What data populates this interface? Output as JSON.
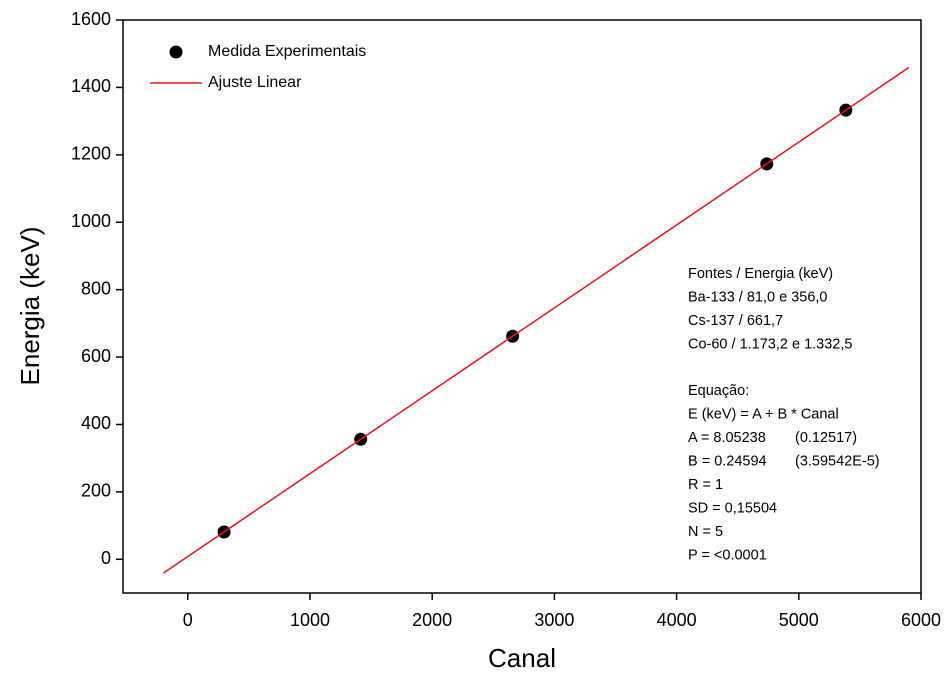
{
  "chart_data": {
    "type": "scatter",
    "x_label": "Canal",
    "y_label": "Energia (keV)",
    "xlim": [
      -530,
      6000
    ],
    "ylim": [
      -100,
      1600
    ],
    "xticks": [
      0,
      1000,
      2000,
      3000,
      4000,
      5000,
      6000
    ],
    "yticks": [
      0,
      200,
      400,
      600,
      800,
      1000,
      1200,
      1400,
      1600
    ],
    "legend": "upper left",
    "series": [
      {
        "name": "Medida Experimentais",
        "type": "scatter",
        "color": "#000000",
        "x": [
          297,
          1415,
          2658,
          4738,
          5385
        ],
        "values": [
          81.0,
          356.0,
          661.7,
          1173.2,
          1332.5
        ]
      },
      {
        "name": "Ajuste Linear",
        "type": "line",
        "color": "#e8141b",
        "x": [
          -200,
          5900
        ],
        "values": [
          -41.1,
          1459.1
        ]
      }
    ],
    "annotations": [
      [
        "Fontes / Energia (keV)"
      ],
      [
        "Ba-133 / 81,0 e 356,0"
      ],
      [
        "Cs-137 / 661,7"
      ],
      [
        "Co-60 / 1.173,2 e 1.332,5"
      ],
      [
        "Equação:"
      ],
      [
        "E (keV) = A + B * Canal"
      ],
      [
        "A = 8.05238",
        "(0.12517)"
      ],
      [
        "B = 0.24594",
        "(3.59542E-5)"
      ],
      [
        "R = 1"
      ],
      [
        "SD = 0,15504"
      ],
      [
        "N = 5"
      ],
      [
        "P = <0.0001"
      ]
    ]
  }
}
